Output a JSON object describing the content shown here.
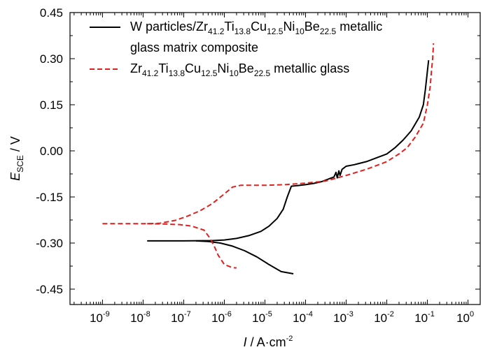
{
  "chart_data": {
    "type": "line",
    "title": "",
    "xlabel": "I / A·cm",
    "xlabel_exponent": "-2",
    "xlabel_parts": {
      "italic": "I",
      "rest": " / A·cm",
      "exponent": "-2"
    },
    "ylabel_parts": {
      "italic": "E",
      "subscript": "SCE",
      "rest": " / V"
    },
    "ylabel": "E_SCE / V",
    "xscale": "log",
    "xlim_log10": [
      -9.8,
      0.3
    ],
    "ylim": [
      -0.5,
      0.45
    ],
    "x_ticks": [
      {
        "base": "10",
        "exp": "-9",
        "value": -9
      },
      {
        "base": "10",
        "exp": "-8",
        "value": -8
      },
      {
        "base": "10",
        "exp": "-7",
        "value": -7
      },
      {
        "base": "10",
        "exp": "-6",
        "value": -6
      },
      {
        "base": "10",
        "exp": "-5",
        "value": -5
      },
      {
        "base": "10",
        "exp": "-4",
        "value": -4
      },
      {
        "base": "10",
        "exp": "-3",
        "value": -3
      },
      {
        "base": "10",
        "exp": "-2",
        "value": -2
      },
      {
        "base": "10",
        "exp": "-1",
        "value": -1
      },
      {
        "base": "10",
        "exp": "0",
        "value": 0
      }
    ],
    "y_ticks": [
      {
        "label": "0.45",
        "value": 0.45
      },
      {
        "label": "0.30",
        "value": 0.3
      },
      {
        "label": "0.15",
        "value": 0.15
      },
      {
        "label": "0.00",
        "value": 0.0
      },
      {
        "label": "-0.15",
        "value": -0.15
      },
      {
        "label": "-0.30",
        "value": -0.3
      },
      {
        "label": "-0.45",
        "value": -0.45
      }
    ],
    "legend_position": "top-left",
    "series": [
      {
        "name": "W particles/Zr41.2Ti13.8Cu12.5Ni10Be22.5 metallic glass matrix composite",
        "color": "#000000",
        "style": "solid",
        "legend_lines": [
          [
            {
              "t": "W particles/Zr"
            },
            {
              "t": "41.2",
              "sub": true
            },
            {
              "t": "Ti"
            },
            {
              "t": "13.8",
              "sub": true
            },
            {
              "t": "Cu"
            },
            {
              "t": "12.5",
              "sub": true
            },
            {
              "t": "Ni"
            },
            {
              "t": "10",
              "sub": true
            },
            {
              "t": "Be"
            },
            {
              "t": "22.5",
              "sub": true
            },
            {
              "t": " metallic"
            }
          ],
          [
            {
              "t": "glass matrix composite"
            }
          ]
        ],
        "branches": [
          {
            "part": "anodic",
            "points": [
              [
                -7.9,
                -0.293
              ],
              [
                -7.0,
                -0.293
              ],
              [
                -6.3,
                -0.292
              ],
              [
                -6.0,
                -0.29
              ],
              [
                -5.7,
                -0.285
              ],
              [
                -5.4,
                -0.276
              ],
              [
                -5.1,
                -0.262
              ],
              [
                -4.9,
                -0.245
              ],
              [
                -4.7,
                -0.22
              ],
              [
                -4.55,
                -0.19
              ],
              [
                -4.45,
                -0.15
              ],
              [
                -4.35,
                -0.115
              ],
              [
                -4.2,
                -0.113
              ],
              [
                -4.0,
                -0.11
              ],
              [
                -3.8,
                -0.106
              ],
              [
                -3.6,
                -0.1
              ],
              [
                -3.4,
                -0.09
              ],
              [
                -3.3,
                -0.085
              ],
              [
                -3.25,
                -0.07
              ],
              [
                -3.22,
                -0.088
              ],
              [
                -3.18,
                -0.065
              ],
              [
                -3.15,
                -0.08
              ],
              [
                -3.1,
                -0.06
              ],
              [
                -3.0,
                -0.05
              ],
              [
                -2.8,
                -0.045
              ],
              [
                -2.5,
                -0.035
              ],
              [
                -2.2,
                -0.02
              ],
              [
                -2.0,
                -0.01
              ],
              [
                -1.8,
                0.01
              ],
              [
                -1.6,
                0.035
              ],
              [
                -1.4,
                0.065
              ],
              [
                -1.2,
                0.11
              ],
              [
                -1.1,
                0.15
              ],
              [
                -1.05,
                0.2
              ],
              [
                -1.0,
                0.26
              ],
              [
                -0.97,
                0.295
              ]
            ]
          },
          {
            "part": "cathodic",
            "points": [
              [
                -6.7,
                -0.293
              ],
              [
                -6.4,
                -0.295
              ],
              [
                -6.1,
                -0.3
              ],
              [
                -5.8,
                -0.31
              ],
              [
                -5.5,
                -0.325
              ],
              [
                -5.2,
                -0.345
              ],
              [
                -4.9,
                -0.37
              ],
              [
                -4.6,
                -0.393
              ],
              [
                -4.3,
                -0.4
              ]
            ]
          }
        ]
      },
      {
        "name": "Zr41.2Ti13.8Cu12.5Ni10Be22.5 metallic glass",
        "color": "#e0201e",
        "style": "dashed",
        "legend_lines": [
          [
            {
              "t": "Zr"
            },
            {
              "t": "41.2",
              "sub": true
            },
            {
              "t": "Ti"
            },
            {
              "t": "13.8",
              "sub": true
            },
            {
              "t": "Cu"
            },
            {
              "t": "12.5",
              "sub": true
            },
            {
              "t": "Ni"
            },
            {
              "t": "10",
              "sub": true
            },
            {
              "t": "Be"
            },
            {
              "t": "22.5",
              "sub": true
            },
            {
              "t": " metallic glass"
            }
          ]
        ],
        "branches": [
          {
            "part": "anodic",
            "points": [
              [
                -9.0,
                -0.237
              ],
              [
                -8.0,
                -0.237
              ],
              [
                -7.6,
                -0.236
              ],
              [
                -7.2,
                -0.226
              ],
              [
                -6.9,
                -0.212
              ],
              [
                -6.6,
                -0.195
              ],
              [
                -6.3,
                -0.172
              ],
              [
                -6.0,
                -0.14
              ],
              [
                -5.8,
                -0.118
              ],
              [
                -5.6,
                -0.112
              ],
              [
                -5.0,
                -0.112
              ],
              [
                -4.5,
                -0.11
              ],
              [
                -4.0,
                -0.105
              ],
              [
                -3.5,
                -0.098
              ],
              [
                -3.0,
                -0.08
              ],
              [
                -2.5,
                -0.06
              ],
              [
                -2.0,
                -0.035
              ],
              [
                -1.7,
                -0.01
              ],
              [
                -1.5,
                0.01
              ],
              [
                -1.3,
                0.045
              ],
              [
                -1.1,
                0.09
              ],
              [
                -1.0,
                0.15
              ],
              [
                -0.93,
                0.21
              ],
              [
                -0.9,
                0.26
              ],
              [
                -0.87,
                0.3
              ],
              [
                -0.85,
                0.35
              ]
            ]
          },
          {
            "part": "cathodic",
            "points": [
              [
                -7.9,
                -0.237
              ],
              [
                -7.5,
                -0.238
              ],
              [
                -7.1,
                -0.24
              ],
              [
                -6.8,
                -0.245
              ],
              [
                -6.5,
                -0.258
              ],
              [
                -6.35,
                -0.285
              ],
              [
                -6.25,
                -0.31
              ],
              [
                -6.15,
                -0.34
              ],
              [
                -6.0,
                -0.37
              ],
              [
                -5.8,
                -0.38
              ],
              [
                -5.7,
                -0.381
              ]
            ]
          }
        ]
      }
    ]
  }
}
